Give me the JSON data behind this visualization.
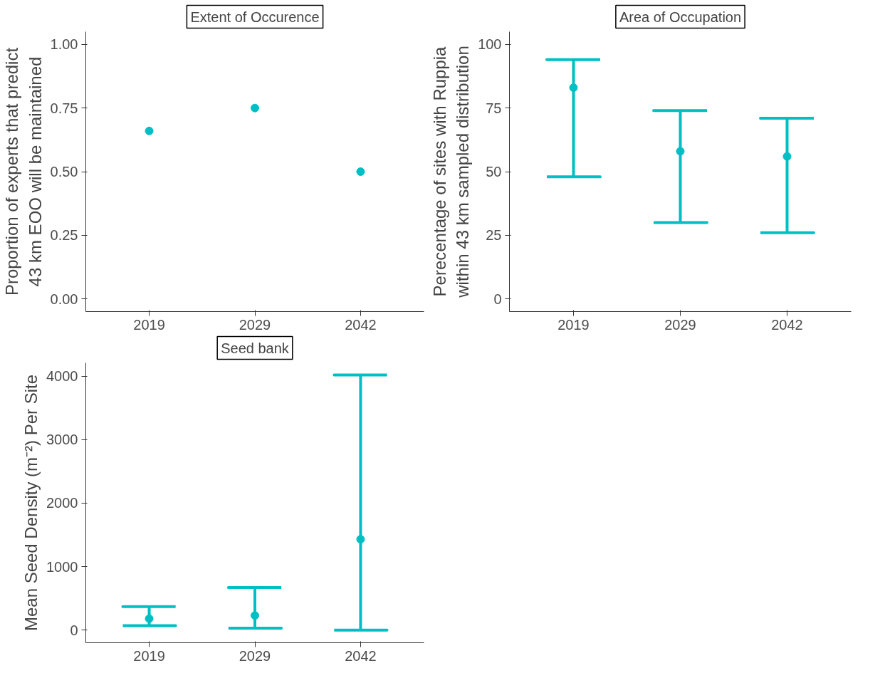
{
  "chart_data": [
    {
      "type": "scatter",
      "title": "Extent of Occurence",
      "ylabel": "Proportion of experts that predict\n43 km EOO will be maintained",
      "categories": [
        "2019",
        "2029",
        "2042"
      ],
      "values": [
        0.66,
        0.75,
        0.5
      ],
      "color": "#00bfc4",
      "marker": "circle",
      "grid": false,
      "ylim": [
        -0.05,
        1.05
      ],
      "yticks": [
        {
          "value": 0,
          "label": "0.00"
        },
        {
          "value": 0.25,
          "label": "0.25"
        },
        {
          "value": 0.5,
          "label": "0.50"
        },
        {
          "value": 0.75,
          "label": "0.75"
        },
        {
          "value": 1,
          "label": "1.00"
        }
      ]
    },
    {
      "type": "scatter",
      "title": "Area of Occupation",
      "ylabel": "Perecentage of sites with Ruppia\nwithin 43 km sampled distribution",
      "categories": [
        "2019",
        "2029",
        "2042"
      ],
      "values": [
        83,
        58,
        56
      ],
      "errors": [
        [
          48,
          94
        ],
        [
          30,
          74
        ],
        [
          26,
          71
        ]
      ],
      "color": "#00bfc4",
      "marker": "circle",
      "grid": false,
      "ylim": [
        -5,
        105
      ],
      "yticks": [
        0,
        25,
        50,
        75,
        100
      ]
    },
    {
      "type": "scatter",
      "title": "Seed bank",
      "ylabel": "Mean Seed Density (m⁻²) Per Site",
      "categories": [
        "2019",
        "2029",
        "2042"
      ],
      "values": [
        180,
        230,
        1430
      ],
      "errors": [
        [
          70,
          370
        ],
        [
          30,
          670
        ],
        [
          0,
          4020
        ]
      ],
      "color": "#00bfc4",
      "marker": "circle",
      "grid": false,
      "ylim": [
        -200,
        4210
      ],
      "yticks": [
        0,
        1000,
        2000,
        3000,
        4000
      ]
    }
  ]
}
